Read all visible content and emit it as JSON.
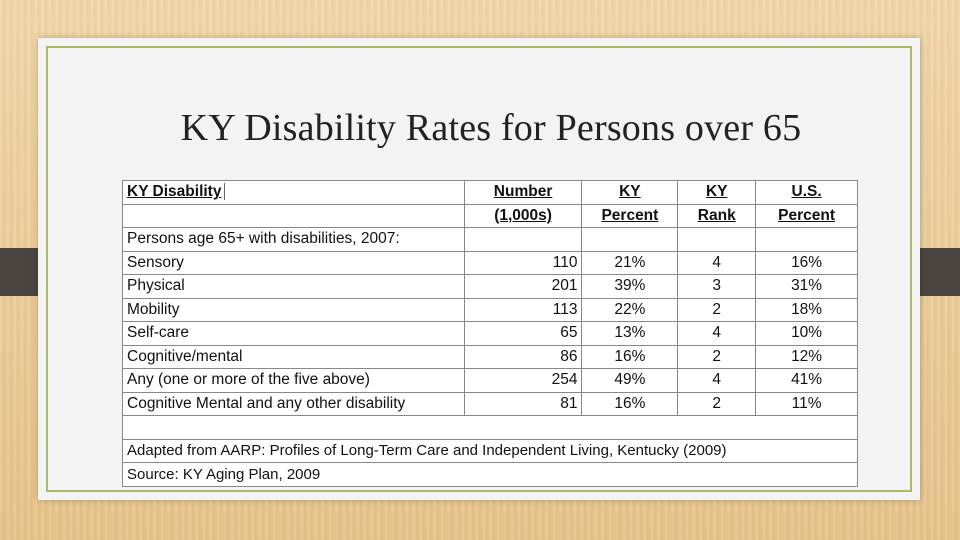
{
  "title": "KY Disability Rates for Persons over 65",
  "table": {
    "header_row1": [
      "KY Disability",
      "Number",
      "KY",
      "KY",
      "U.S."
    ],
    "header_row2": [
      "(1,000s)",
      "Percent",
      "Rank",
      "Percent"
    ],
    "section_label": "Persons age 65+ with disabilities, 2007:",
    "rows": [
      {
        "label": "Sensory",
        "number": "110",
        "ky_percent": "21%",
        "rank": "4",
        "us_percent": "16%"
      },
      {
        "label": "Physical",
        "number": "201",
        "ky_percent": "39%",
        "rank": "3",
        "us_percent": "31%"
      },
      {
        "label": "Mobility",
        "number": "113",
        "ky_percent": "22%",
        "rank": "2",
        "us_percent": "18%"
      },
      {
        "label": "Self-care",
        "number": "65",
        "ky_percent": "13%",
        "rank": "4",
        "us_percent": "10%"
      },
      {
        "label": "Cognitive/mental",
        "number": "86",
        "ky_percent": "16%",
        "rank": "2",
        "us_percent": "12%"
      },
      {
        "label": "Any (one or more of the five above)",
        "number": "254",
        "ky_percent": "49%",
        "rank": "4",
        "us_percent": "41%"
      },
      {
        "label": "Cognitive Mental and any other disability",
        "number": "81",
        "ky_percent": "16%",
        "rank": "2",
        "us_percent": "11%"
      }
    ],
    "adapted_note": "Adapted from AARP: Profiles of Long-Term Care and Independent Living, Kentucky (2009)",
    "source_note": "Source: KY Aging Plan, 2009"
  }
}
